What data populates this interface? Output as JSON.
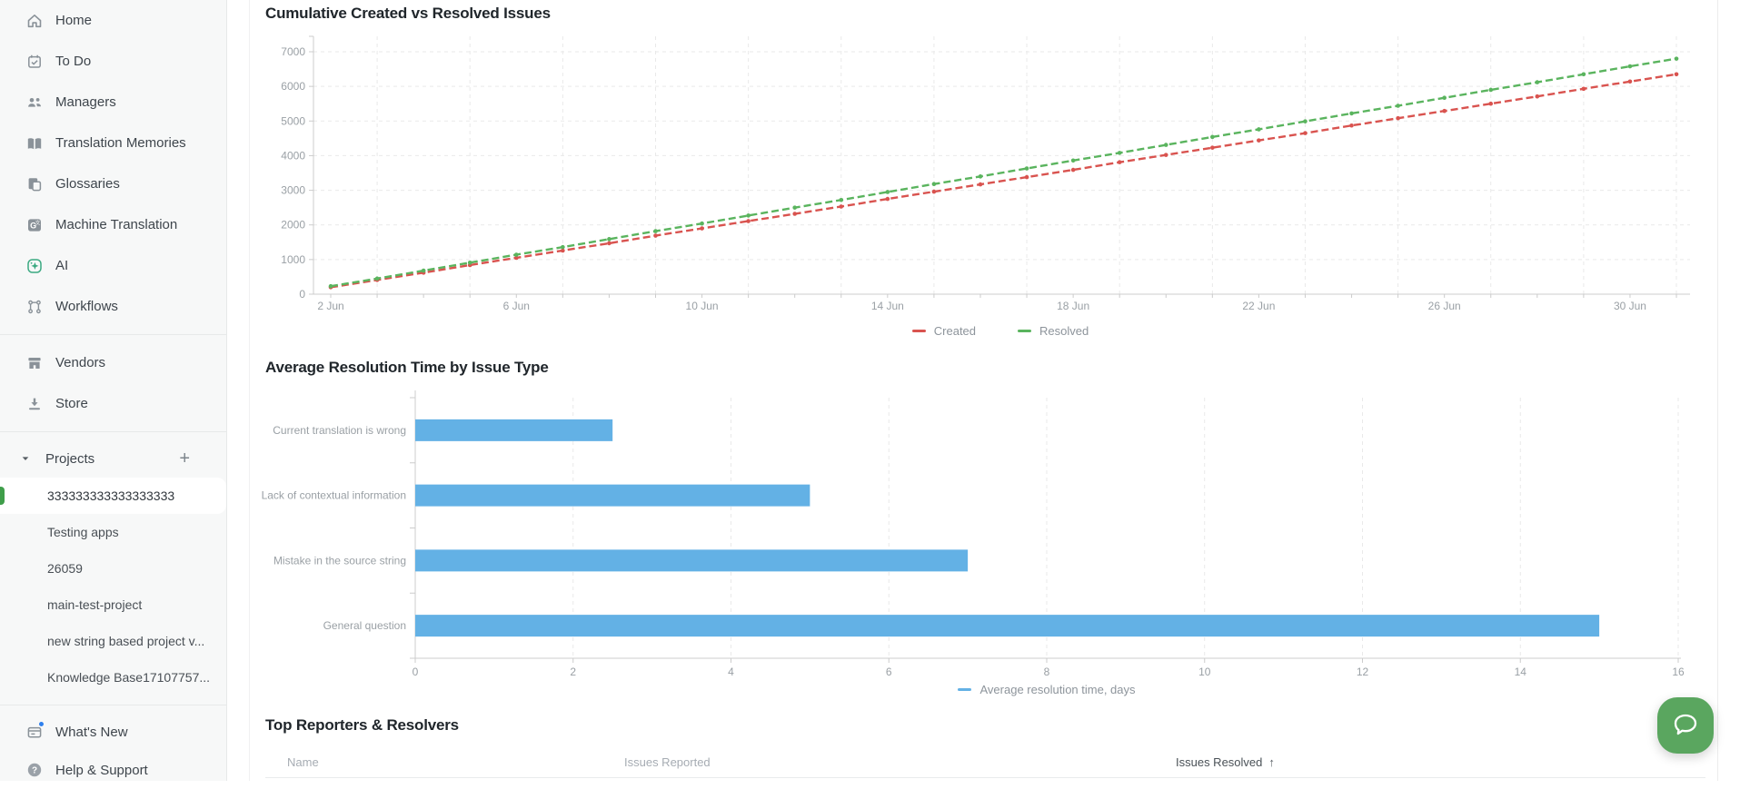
{
  "sidebar": {
    "nav_primary": [
      {
        "label": "Home",
        "icon": "home-icon"
      },
      {
        "label": "To Do",
        "icon": "todo-calendar-icon"
      },
      {
        "label": "Managers",
        "icon": "managers-icon"
      },
      {
        "label": "Translation Memories",
        "icon": "translation-memories-icon"
      },
      {
        "label": "Glossaries",
        "icon": "glossaries-icon"
      },
      {
        "label": "Machine Translation",
        "icon": "machine-translation-icon"
      },
      {
        "label": "AI",
        "icon": "ai-sparkle-icon"
      },
      {
        "label": "Workflows",
        "icon": "workflows-icon"
      }
    ],
    "nav_secondary": [
      {
        "label": "Vendors",
        "icon": "vendors-icon"
      },
      {
        "label": "Store",
        "icon": "store-download-icon"
      }
    ],
    "projects_header": {
      "label": "Projects",
      "add_label": "+",
      "collapse_icon": "chevron-down-icon",
      "add_icon": "plus-icon"
    },
    "projects": [
      {
        "label": "333333333333333333",
        "selected": true
      },
      {
        "label": "Testing apps",
        "selected": false
      },
      {
        "label": "26059",
        "selected": false
      },
      {
        "label": "main-test-project",
        "selected": false
      },
      {
        "label": "new string based project v...",
        "selected": false
      },
      {
        "label": "Knowledge Base17107757...",
        "selected": false
      }
    ],
    "nav_footer": [
      {
        "label": "What's New",
        "icon": "whats-new-icon",
        "notification_dot": true
      },
      {
        "label": "Help & Support",
        "icon": "help-circle-icon",
        "notification_dot": false
      }
    ],
    "accent_green": "#3f9e4a"
  },
  "chart_data": [
    {
      "type": "line",
      "title": "Cumulative Created vs Resolved Issues",
      "x": [
        "2 Jun",
        "3 Jun",
        "4 Jun",
        "5 Jun",
        "6 Jun",
        "7 Jun",
        "8 Jun",
        "9 Jun",
        "10 Jun",
        "11 Jun",
        "12 Jun",
        "13 Jun",
        "14 Jun",
        "15 Jun",
        "16 Jun",
        "17 Jun",
        "18 Jun",
        "19 Jun",
        "20 Jun",
        "21 Jun",
        "22 Jun",
        "23 Jun",
        "24 Jun",
        "25 Jun",
        "26 Jun",
        "27 Jun",
        "28 Jun",
        "29 Jun",
        "30 Jun",
        "1 Jul"
      ],
      "x_tick_labels": [
        "2 Jun",
        "6 Jun",
        "10 Jun",
        "14 Jun",
        "18 Jun",
        "22 Jun",
        "26 Jun",
        "30 Jun"
      ],
      "ylim": [
        0,
        7000
      ],
      "y_ticks": [
        0,
        1000,
        2000,
        3000,
        4000,
        5000,
        6000,
        7000
      ],
      "grid": true,
      "legend_position": "bottom",
      "series": [
        {
          "name": "Created",
          "color": "#d9534f",
          "values": [
            200,
            410,
            620,
            840,
            1050,
            1260,
            1470,
            1690,
            1900,
            2110,
            2320,
            2530,
            2750,
            2960,
            3170,
            3380,
            3590,
            3810,
            4020,
            4230,
            4440,
            4650,
            4870,
            5080,
            5290,
            5500,
            5710,
            5930,
            6140,
            6350
          ]
        },
        {
          "name": "Resolved",
          "color": "#5ab45e",
          "values": [
            230,
            450,
            680,
            910,
            1140,
            1360,
            1590,
            1820,
            2040,
            2270,
            2500,
            2720,
            2950,
            3180,
            3400,
            3630,
            3860,
            4080,
            4310,
            4540,
            4760,
            4990,
            5220,
            5440,
            5670,
            5900,
            6120,
            6350,
            6580,
            6800
          ]
        }
      ]
    },
    {
      "type": "bar",
      "orientation": "horizontal",
      "title": "Average Resolution Time by Issue Type",
      "categories": [
        "Current translation is wrong",
        "Lack of contextual information",
        "Mistake in the source string",
        "General question"
      ],
      "values": [
        2.5,
        5,
        7,
        15
      ],
      "xlim": [
        0,
        16
      ],
      "x_ticks": [
        0,
        2,
        4,
        6,
        8,
        10,
        12,
        14,
        16
      ],
      "grid": true,
      "color": "#63b1e5",
      "legend": "Average resolution time, days",
      "legend_position": "bottom"
    }
  ],
  "table": {
    "title": "Top Reporters & Resolvers",
    "columns": [
      "Name",
      "Issues Reported",
      "Issues Resolved"
    ],
    "sort": {
      "column": "Issues Resolved",
      "direction": "ascending",
      "arrow": "↑"
    }
  },
  "chat_widget": {
    "icon": "chat-bubble-icon",
    "color": "#5aa65f"
  }
}
